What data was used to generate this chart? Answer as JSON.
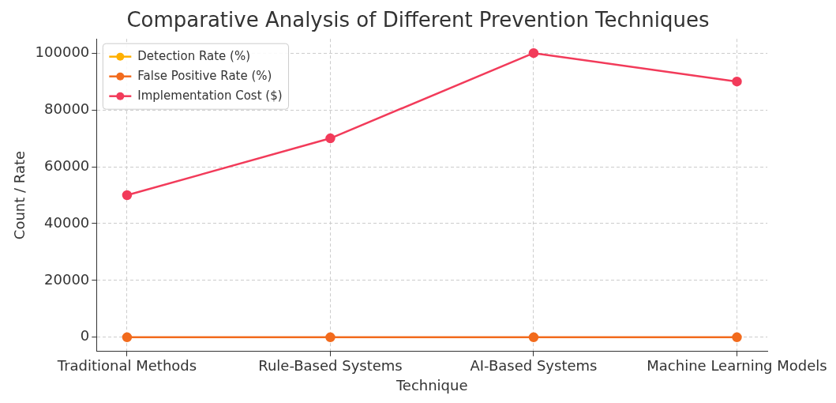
{
  "chart_data": {
    "type": "line",
    "title": "Comparative Analysis of Different Prevention Techniques",
    "xlabel": "Technique",
    "ylabel": "Count / Rate",
    "categories": [
      "Traditional Methods",
      "Rule-Based Systems",
      "AI-Based Systems",
      "Machine Learning Models"
    ],
    "series": [
      {
        "name": "Detection Rate (%)",
        "color": "#ffb000",
        "values": [
          null,
          null,
          null,
          null
        ]
      },
      {
        "name": "False Positive Rate (%)",
        "color": "#f26b1d",
        "values": [
          0,
          0,
          0,
          0
        ]
      },
      {
        "name": "Implementation Cost ($)",
        "color": "#f23b5a",
        "values": [
          50000,
          70000,
          100000,
          90000
        ]
      }
    ],
    "ylim": [
      -5000,
      105000
    ],
    "yticks": [
      0,
      20000,
      40000,
      60000,
      80000,
      100000
    ],
    "grid": true,
    "legend": "top left",
    "marker": "circle",
    "line_style": "solid"
  }
}
